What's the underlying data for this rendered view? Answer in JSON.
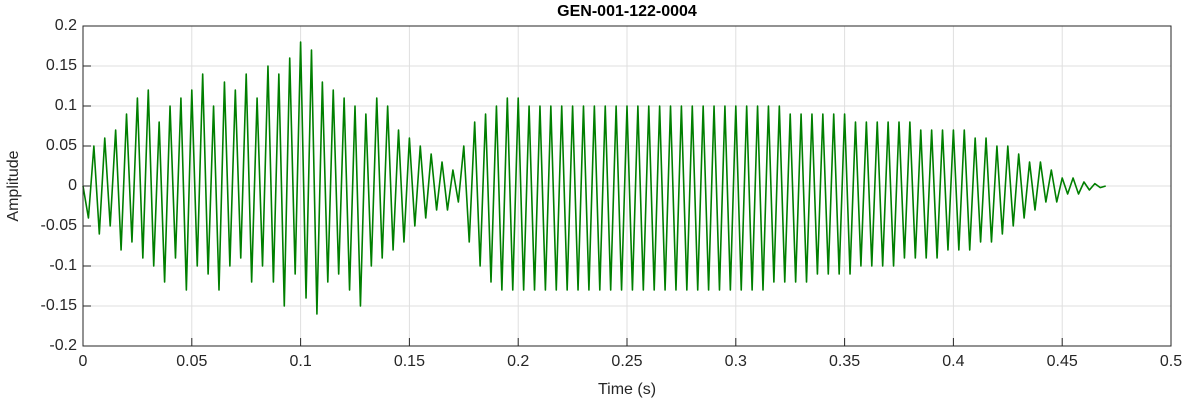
{
  "chart_data": {
    "type": "line",
    "title": "GEN-001-122-0004",
    "xlabel": "Time (s)",
    "ylabel": "Amplitude",
    "xlim": [
      0,
      0.5
    ],
    "ylim": [
      -0.2,
      0.2
    ],
    "xticks": [
      0,
      0.05,
      0.1,
      0.15,
      0.2,
      0.25,
      0.3,
      0.35,
      0.4,
      0.45,
      0.5
    ],
    "yticks": [
      -0.2,
      -0.15,
      -0.1,
      -0.05,
      0,
      0.05,
      0.1,
      0.15,
      0.2
    ],
    "grid": true,
    "color": "#007f00",
    "x": [
      0,
      0.0025,
      0.005,
      0.0075,
      0.01,
      0.0125,
      0.015,
      0.0175,
      0.02,
      0.0225,
      0.025,
      0.0275,
      0.03,
      0.0325,
      0.035,
      0.0375,
      0.04,
      0.0425,
      0.045,
      0.0475,
      0.05,
      0.0525,
      0.055,
      0.0575,
      0.06,
      0.0625,
      0.065,
      0.0675,
      0.07,
      0.0725,
      0.075,
      0.0775,
      0.08,
      0.0825,
      0.085,
      0.0875,
      0.09,
      0.0925,
      0.095,
      0.0975,
      0.1,
      0.1025,
      0.105,
      0.1075,
      0.11,
      0.1125,
      0.115,
      0.1175,
      0.12,
      0.1225,
      0.125,
      0.1275,
      0.13,
      0.1325,
      0.135,
      0.1375,
      0.14,
      0.1425,
      0.145,
      0.1475,
      0.15,
      0.1525,
      0.155,
      0.1575,
      0.16,
      0.1625,
      0.165,
      0.1675,
      0.17,
      0.1725,
      0.175,
      0.1775,
      0.18,
      0.1825,
      0.185,
      0.1875,
      0.19,
      0.1925,
      0.195,
      0.1975,
      0.2,
      0.2025,
      0.205,
      0.2075,
      0.21,
      0.2125,
      0.215,
      0.2175,
      0.22,
      0.2225,
      0.225,
      0.2275,
      0.23,
      0.2325,
      0.235,
      0.2375,
      0.24,
      0.2425,
      0.245,
      0.2475,
      0.25,
      0.2525,
      0.255,
      0.2575,
      0.26,
      0.2625,
      0.265,
      0.2675,
      0.27,
      0.2725,
      0.275,
      0.2775,
      0.28,
      0.2825,
      0.285,
      0.2875,
      0.29,
      0.2925,
      0.295,
      0.2975,
      0.3,
      0.3025,
      0.305,
      0.3075,
      0.31,
      0.3125,
      0.315,
      0.3175,
      0.32,
      0.3225,
      0.325,
      0.3275,
      0.33,
      0.3325,
      0.335,
      0.3375,
      0.34,
      0.3425,
      0.345,
      0.3475,
      0.35,
      0.3525,
      0.355,
      0.3575,
      0.36,
      0.3625,
      0.365,
      0.3675,
      0.37,
      0.3725,
      0.375,
      0.3775,
      0.38,
      0.3825,
      0.385,
      0.3875,
      0.39,
      0.3925,
      0.395,
      0.3975,
      0.4,
      0.4025,
      0.405,
      0.4075,
      0.41,
      0.4125,
      0.415,
      0.4175,
      0.42,
      0.4225,
      0.425,
      0.4275,
      0.43,
      0.4325,
      0.435,
      0.4375,
      0.44,
      0.4425,
      0.445,
      0.4475,
      0.45,
      0.4525,
      0.455,
      0.4575,
      0.46,
      0.4625,
      0.465,
      0.4675,
      0.47
    ],
    "values": [
      0,
      -0.04,
      0.05,
      -0.06,
      0.06,
      -0.05,
      0.07,
      -0.08,
      0.09,
      -0.07,
      0.11,
      -0.09,
      0.12,
      -0.1,
      0.08,
      -0.12,
      0.1,
      -0.09,
      0.11,
      -0.13,
      0.12,
      -0.1,
      0.14,
      -0.11,
      0.1,
      -0.13,
      0.13,
      -0.1,
      0.12,
      -0.09,
      0.14,
      -0.12,
      0.11,
      -0.1,
      0.15,
      -0.12,
      0.14,
      -0.15,
      0.16,
      -0.11,
      0.18,
      -0.14,
      0.17,
      -0.16,
      0.13,
      -0.12,
      0.12,
      -0.11,
      0.11,
      -0.13,
      0.1,
      -0.15,
      0.09,
      -0.1,
      0.11,
      -0.09,
      0.1,
      -0.08,
      0.07,
      -0.07,
      0.06,
      -0.05,
      0.05,
      -0.04,
      0.04,
      -0.03,
      0.03,
      -0.03,
      0.02,
      -0.02,
      0.05,
      -0.07,
      0.08,
      -0.1,
      0.09,
      -0.12,
      0.1,
      -0.13,
      0.11,
      -0.13,
      0.11,
      -0.13,
      0.1,
      -0.13,
      0.1,
      -0.13,
      0.1,
      -0.13,
      0.1,
      -0.13,
      0.1,
      -0.13,
      0.1,
      -0.13,
      0.1,
      -0.13,
      0.1,
      -0.13,
      0.1,
      -0.13,
      0.1,
      -0.13,
      0.1,
      -0.13,
      0.1,
      -0.13,
      0.1,
      -0.13,
      0.1,
      -0.13,
      0.1,
      -0.13,
      0.1,
      -0.13,
      0.1,
      -0.13,
      0.1,
      -0.13,
      0.1,
      -0.13,
      0.1,
      -0.13,
      0.1,
      -0.13,
      0.1,
      -0.13,
      0.1,
      -0.12,
      0.1,
      -0.12,
      0.09,
      -0.12,
      0.09,
      -0.12,
      0.09,
      -0.11,
      0.09,
      -0.11,
      0.09,
      -0.11,
      0.09,
      -0.11,
      0.08,
      -0.1,
      0.08,
      -0.1,
      0.08,
      -0.1,
      0.08,
      -0.1,
      0.08,
      -0.09,
      0.08,
      -0.09,
      0.07,
      -0.09,
      0.07,
      -0.09,
      0.07,
      -0.08,
      0.07,
      -0.08,
      0.07,
      -0.08,
      0.06,
      -0.07,
      0.06,
      -0.07,
      0.05,
      -0.06,
      0.05,
      -0.05,
      0.04,
      -0.04,
      0.03,
      -0.03,
      0.03,
      -0.02,
      0.02,
      -0.02,
      0.01,
      -0.01,
      0.01,
      -0.01,
      0.005,
      -0.005,
      0.003,
      -0.002,
      0
    ]
  }
}
